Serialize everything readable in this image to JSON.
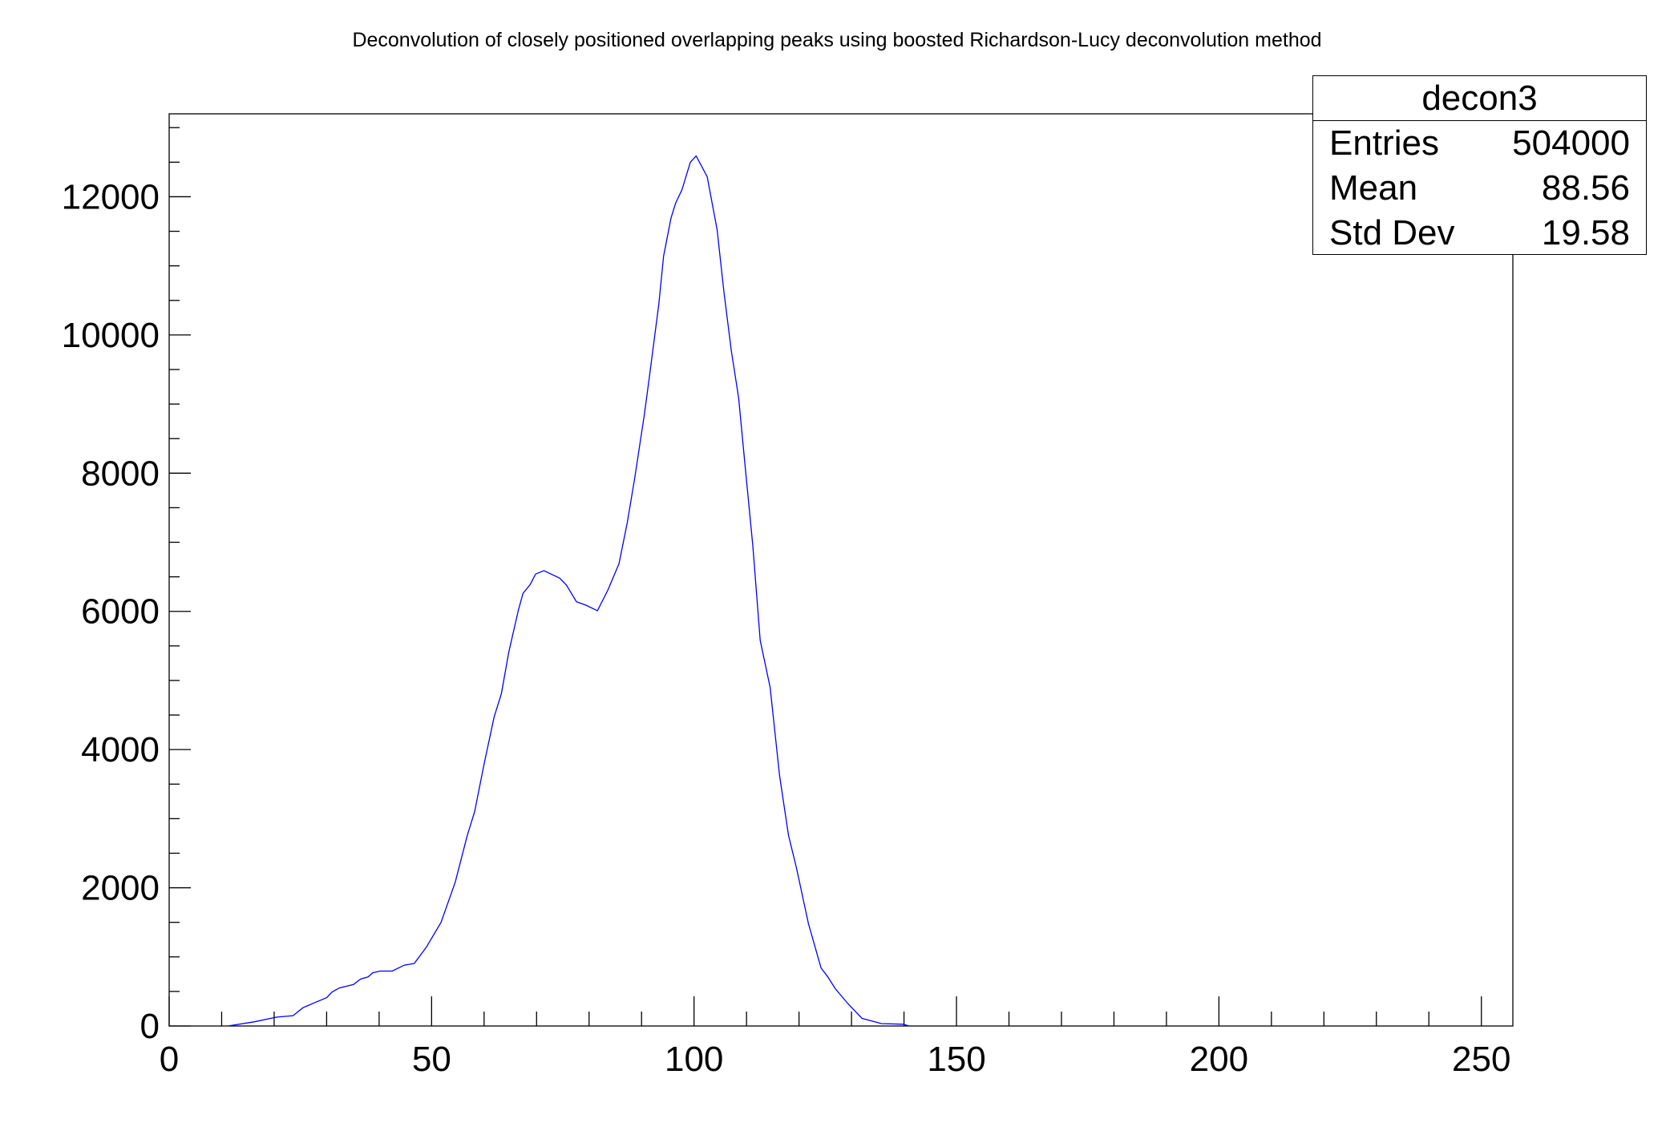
{
  "chart_data": {
    "type": "line",
    "title": "Deconvolution of closely positioned overlapping peaks using boosted Richardson-Lucy deconvolution method",
    "xlabel": "",
    "ylabel": "",
    "xlim": [
      0,
      256
    ],
    "ylim": [
      0,
      13200
    ],
    "x_ticks": [
      "0",
      "50",
      "100",
      "150",
      "200",
      "250"
    ],
    "y_ticks": [
      "0",
      "2000",
      "4000",
      "6000",
      "8000",
      "10000",
      "12000"
    ],
    "grid": false,
    "line_color": "#0000ff",
    "series": [
      {
        "x": [
          11.2,
          16.2,
          20.4,
          23.6,
          25.5,
          27.8,
          30,
          31,
          32.4,
          35.1,
          36.5,
          37.9,
          38.8,
          40.2,
          42.5,
          44.8,
          46.7,
          49,
          51.8,
          54.5,
          56.8,
          58.2,
          60,
          61.9,
          63.3,
          64.7,
          66.5,
          67.4,
          68.8,
          69.8,
          71.4,
          74.4,
          75.7,
          77.6,
          79.4,
          81.6,
          83.6,
          85.7,
          87.3,
          88.7,
          90.5,
          91.4,
          93.3,
          94.2,
          95.6,
          96.5,
          97.7,
          99.3,
          100.4,
          102.5,
          104.4,
          105.7,
          107.1,
          108.5,
          109.9,
          111.2,
          112.6,
          114.5,
          116.3,
          118,
          119.5,
          121.8,
          124.2,
          125.5,
          126.9,
          129.3,
          132,
          135.7,
          139.8,
          141
        ],
        "y": [
          0,
          60,
          128,
          150,
          265,
          340,
          410,
          490,
          550,
          600,
          680,
          710,
          770,
          795,
          795,
          880,
          905,
          1140,
          1500,
          2080,
          2760,
          3100,
          3790,
          4470,
          4810,
          5410,
          6010,
          6260,
          6390,
          6540,
          6590,
          6480,
          6380,
          6140,
          6090,
          6010,
          6310,
          6690,
          7290,
          7930,
          8830,
          9340,
          10450,
          11140,
          11690,
          11910,
          12100,
          12500,
          12590,
          12290,
          11520,
          10620,
          9770,
          9090,
          7970,
          6950,
          5580,
          4900,
          3620,
          2760,
          2290,
          1480,
          840,
          710,
          540,
          325,
          110,
          35,
          25,
          0
        ]
      }
    ],
    "stats_box": {
      "name": "decon3",
      "rows": [
        {
          "label": "Entries",
          "value": "504000"
        },
        {
          "label": "Mean",
          "value": "88.56"
        },
        {
          "label": "Std Dev",
          "value": "19.58"
        }
      ]
    }
  }
}
